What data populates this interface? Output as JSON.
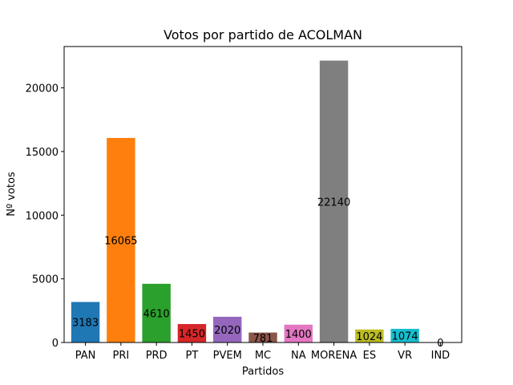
{
  "chart_data": {
    "type": "bar",
    "title": "Votos por partido de ACOLMAN",
    "xlabel": "Partidos",
    "ylabel": "Nº votos",
    "categories": [
      "PAN",
      "PRI",
      "PRD",
      "PT",
      "PVEM",
      "MC",
      "NA",
      "MORENA",
      "ES",
      "VR",
      "IND"
    ],
    "values": [
      3183,
      16065,
      4610,
      1450,
      2020,
      781,
      1400,
      22140,
      1024,
      1074,
      0
    ],
    "colors": [
      "#1f77b4",
      "#ff7f0e",
      "#2ca02c",
      "#d62728",
      "#9467bd",
      "#8c564b",
      "#e377c2",
      "#7f7f7f",
      "#bcbd22",
      "#17becf",
      "#1f77b4"
    ],
    "ylim": [
      0,
      23247
    ],
    "yticks": [
      0,
      5000,
      10000,
      15000,
      20000
    ],
    "grid": false,
    "legend": "none"
  }
}
